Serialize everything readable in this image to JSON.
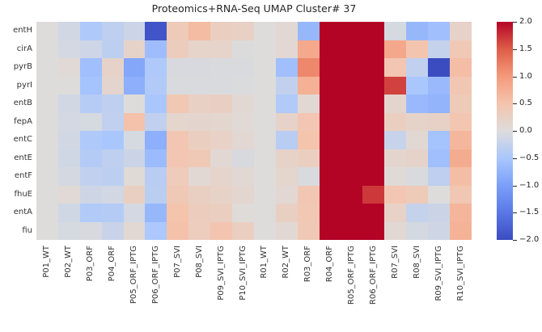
{
  "title": "Proteomics+RNA-Seq UMAP Cluster# 37",
  "chart_data": {
    "type": "heatmap",
    "title": "Proteomics+RNA-Seq UMAP Cluster# 37",
    "xlabel": "",
    "ylabel": "",
    "grid": false,
    "legend_position": "right-colorbar",
    "rows": [
      "entH",
      "cirA",
      "pyrB",
      "pyrI",
      "entB",
      "fepA",
      "entC",
      "entE",
      "entF",
      "fhuE",
      "entA",
      "fiu"
    ],
    "columns": [
      "P01_WT",
      "P02_WT",
      "P03_ORF",
      "P04_ORF",
      "P05_ORF_IPTG",
      "P06_ORF_IPTG",
      "P07_SVI",
      "P08_SVI",
      "P09_SVI_IPTG",
      "P10_SVI_IPTG",
      "R01_WT",
      "R02_WT",
      "R03_ORF",
      "R04_ORF",
      "R05_ORF_IPTG",
      "R06_ORF_IPTG",
      "R07_SVI",
      "R08_SVI",
      "R09_SVI_IPTG",
      "R10_SVI_IPTG"
    ],
    "values": [
      [
        0.0,
        -0.12,
        -0.45,
        -0.3,
        -0.17,
        -1.9,
        0.38,
        0.6,
        0.28,
        0.25,
        0.0,
        0.08,
        -0.7,
        2.0,
        2.0,
        2.0,
        -0.08,
        -0.7,
        -0.6,
        0.2
      ],
      [
        0.0,
        -0.1,
        -0.16,
        -0.32,
        0.18,
        -0.62,
        0.33,
        0.19,
        0.19,
        -0.02,
        0.0,
        0.1,
        0.82,
        2.0,
        2.0,
        2.0,
        0.84,
        0.48,
        -0.25,
        0.4
      ],
      [
        0.0,
        0.06,
        -0.6,
        0.2,
        -0.9,
        -0.45,
        -0.06,
        -0.06,
        -0.05,
        -0.05,
        0.0,
        -0.6,
        1.15,
        2.0,
        2.0,
        2.0,
        0.45,
        -0.28,
        -2.0,
        0.58
      ],
      [
        0.0,
        0.01,
        -0.55,
        0.14,
        -0.8,
        -0.42,
        -0.05,
        -0.05,
        -0.04,
        -0.03,
        0.0,
        -0.27,
        0.73,
        2.0,
        2.0,
        2.0,
        1.65,
        -0.5,
        -0.68,
        0.43
      ],
      [
        0.0,
        -0.12,
        -0.38,
        -0.3,
        0.0,
        -0.5,
        0.42,
        0.25,
        0.27,
        0.08,
        0.0,
        -0.43,
        0.08,
        2.0,
        2.0,
        2.0,
        0.14,
        -0.67,
        -0.75,
        0.38
      ],
      [
        0.0,
        -0.1,
        -0.08,
        -0.28,
        0.52,
        -0.28,
        0.15,
        0.14,
        0.13,
        0.07,
        0.0,
        0.2,
        0.45,
        2.0,
        2.0,
        2.0,
        0.28,
        0.18,
        0.22,
        0.46
      ],
      [
        0.0,
        -0.12,
        -0.45,
        -0.5,
        -0.08,
        -0.8,
        0.45,
        0.28,
        0.23,
        0.1,
        0.0,
        -0.35,
        0.5,
        2.0,
        2.0,
        2.0,
        -0.22,
        0.09,
        -0.55,
        0.65
      ],
      [
        0.0,
        -0.13,
        -0.4,
        -0.3,
        -0.18,
        -0.65,
        0.45,
        0.4,
        0.08,
        -0.06,
        0.0,
        0.21,
        0.28,
        2.0,
        2.0,
        2.0,
        0.14,
        0.18,
        -0.6,
        0.78
      ],
      [
        0.0,
        -0.09,
        -0.28,
        -0.32,
        0.05,
        -0.35,
        0.36,
        0.08,
        0.17,
        0.08,
        0.0,
        0.15,
        -0.04,
        2.0,
        2.0,
        2.0,
        0.05,
        -0.05,
        -0.3,
        0.57
      ],
      [
        0.0,
        0.07,
        -0.15,
        -0.12,
        0.27,
        -0.34,
        0.4,
        0.27,
        0.21,
        0.12,
        0.0,
        0.1,
        0.44,
        2.0,
        2.0,
        1.7,
        0.45,
        0.38,
        0.0,
        0.43
      ],
      [
        0.0,
        -0.13,
        -0.43,
        -0.4,
        -0.1,
        -0.7,
        0.5,
        0.33,
        0.28,
        0.03,
        0.0,
        0.27,
        0.42,
        2.0,
        2.0,
        2.0,
        0.23,
        -0.25,
        -0.18,
        0.68
      ],
      [
        0.0,
        -0.08,
        -0.06,
        -0.21,
        0.09,
        -0.48,
        0.52,
        0.32,
        0.47,
        0.28,
        0.0,
        0.09,
        0.4,
        2.0,
        2.0,
        2.0,
        0.08,
        -0.09,
        -0.15,
        0.72
      ]
    ],
    "vmin": -2.0,
    "vmax": 2.0,
    "colormap": "coolwarm",
    "colorbar_tick_labels": [
      "2.0",
      "1.5",
      "1.0",
      "0.5",
      "0.0",
      "−0.5",
      "−1.0",
      "−1.5",
      "−2.0"
    ],
    "colorbar_tick_values": [
      2.0,
      1.5,
      1.0,
      0.5,
      0.0,
      -0.5,
      -1.0,
      -1.5,
      -2.0
    ]
  },
  "colors": {
    "figure_background": "#ffffff",
    "title_text": "#262626",
    "tick_text": "#333333",
    "coolwarm_stops": [
      {
        "v": -2.0,
        "hex": "#3b4cc0"
      },
      {
        "v": -1.5,
        "hex": "#5a78e6"
      },
      {
        "v": -1.0,
        "hex": "#7b9ff9"
      },
      {
        "v": -0.5,
        "hex": "#aac7fd"
      },
      {
        "v": 0.0,
        "hex": "#dddcdb"
      },
      {
        "v": 0.5,
        "hex": "#f4c4ad"
      },
      {
        "v": 1.0,
        "hex": "#f49a7b"
      },
      {
        "v": 1.5,
        "hex": "#de5d48"
      },
      {
        "v": 2.0,
        "hex": "#b40426"
      }
    ]
  }
}
